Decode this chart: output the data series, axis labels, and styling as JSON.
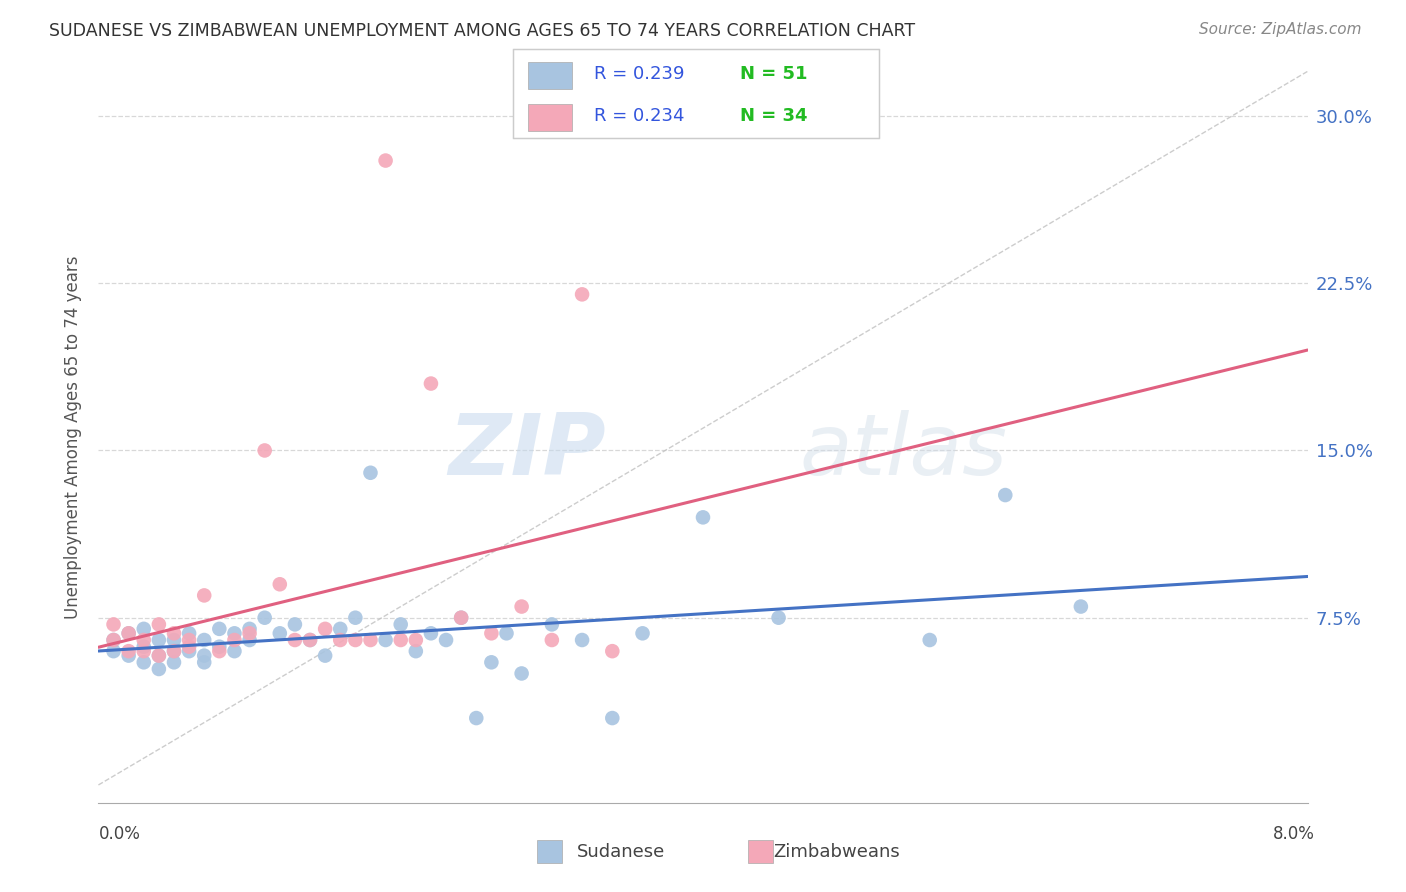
{
  "title": "SUDANESE VS ZIMBABWEAN UNEMPLOYMENT AMONG AGES 65 TO 74 YEARS CORRELATION CHART",
  "source": "Source: ZipAtlas.com",
  "ylabel": "Unemployment Among Ages 65 to 74 years",
  "ytick_labels": [
    "7.5%",
    "15.0%",
    "22.5%",
    "30.0%"
  ],
  "ytick_values": [
    0.075,
    0.15,
    0.225,
    0.3
  ],
  "xmin": 0.0,
  "xmax": 0.08,
  "ymin": -0.008,
  "ymax": 0.32,
  "sudanese_color": "#a8c4e0",
  "zimbabwean_color": "#f4a8b8",
  "trend_sudanese_color": "#4472c4",
  "trend_zimbabwean_color": "#e06080",
  "diagonal_color": "#c0c0c0",
  "legend_r_color": "#3355dd",
  "legend_n_color": "#22bb22",
  "sudanese_R": "0.239",
  "sudanese_N": "51",
  "zimbabwean_R": "0.234",
  "zimbabwean_N": "34",
  "sudanese_x": [
    0.001,
    0.001,
    0.002,
    0.002,
    0.003,
    0.003,
    0.003,
    0.004,
    0.004,
    0.004,
    0.005,
    0.005,
    0.005,
    0.006,
    0.006,
    0.007,
    0.007,
    0.007,
    0.008,
    0.008,
    0.009,
    0.009,
    0.01,
    0.01,
    0.011,
    0.012,
    0.013,
    0.014,
    0.015,
    0.016,
    0.017,
    0.018,
    0.019,
    0.02,
    0.021,
    0.022,
    0.023,
    0.024,
    0.025,
    0.026,
    0.027,
    0.028,
    0.03,
    0.032,
    0.034,
    0.036,
    0.04,
    0.045,
    0.055,
    0.06,
    0.065
  ],
  "sudanese_y": [
    0.06,
    0.065,
    0.058,
    0.068,
    0.055,
    0.062,
    0.07,
    0.058,
    0.065,
    0.052,
    0.06,
    0.065,
    0.055,
    0.06,
    0.068,
    0.058,
    0.065,
    0.055,
    0.062,
    0.07,
    0.068,
    0.06,
    0.065,
    0.07,
    0.075,
    0.068,
    0.072,
    0.065,
    0.058,
    0.07,
    0.075,
    0.14,
    0.065,
    0.072,
    0.06,
    0.068,
    0.065,
    0.075,
    0.03,
    0.055,
    0.068,
    0.05,
    0.072,
    0.065,
    0.03,
    0.068,
    0.12,
    0.075,
    0.065,
    0.13,
    0.08
  ],
  "zimbabwean_x": [
    0.001,
    0.001,
    0.002,
    0.002,
    0.003,
    0.003,
    0.004,
    0.004,
    0.005,
    0.005,
    0.006,
    0.006,
    0.007,
    0.008,
    0.009,
    0.01,
    0.011,
    0.012,
    0.013,
    0.014,
    0.015,
    0.016,
    0.017,
    0.018,
    0.019,
    0.02,
    0.021,
    0.022,
    0.024,
    0.026,
    0.028,
    0.03,
    0.032,
    0.034
  ],
  "zimbabwean_y": [
    0.065,
    0.072,
    0.06,
    0.068,
    0.06,
    0.065,
    0.072,
    0.058,
    0.06,
    0.068,
    0.065,
    0.062,
    0.085,
    0.06,
    0.065,
    0.068,
    0.15,
    0.09,
    0.065,
    0.065,
    0.07,
    0.065,
    0.065,
    0.065,
    0.28,
    0.065,
    0.065,
    0.18,
    0.075,
    0.068,
    0.08,
    0.065,
    0.22,
    0.06
  ],
  "watermark_zip": "ZIP",
  "watermark_atlas": "atlas",
  "background_color": "#ffffff",
  "grid_color": "#d8d8d8",
  "legend_label_sudanese": "Sudanese",
  "legend_label_zimbabweans": "Zimbabweans"
}
